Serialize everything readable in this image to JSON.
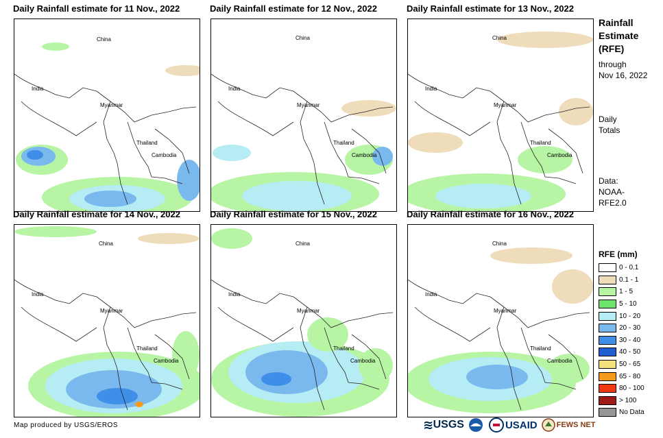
{
  "panels": [
    {
      "title": "Daily Rainfall estimate for 11 Nov., 2022"
    },
    {
      "title": "Daily Rainfall estimate for 12 Nov., 2022"
    },
    {
      "title": "Daily Rainfall estimate for 13 Nov., 2022"
    },
    {
      "title": "Daily Rainfall estimate for 14 Nov., 2022"
    },
    {
      "title": "Daily Rainfall estimate for 15 Nov., 2022"
    },
    {
      "title": "Daily Rainfall estimate for 16 Nov., 2022"
    }
  ],
  "map_labels": {
    "china": "China",
    "india": "India",
    "myanmar": "Myanmar",
    "thailand": "Thailand",
    "cambodia": "Cambodia"
  },
  "sidebar": {
    "title_line1": "Rainfall",
    "title_line2": "Estimate",
    "title_line3": "(RFE)",
    "through": "through",
    "date": "Nov 16, 2022",
    "daily": "Daily",
    "totals": "Totals",
    "data_label": "Data:",
    "data_source1": "NOAA-",
    "data_source2": "RFE2.0"
  },
  "legend": {
    "title": "RFE (mm)",
    "items": [
      {
        "label": "0 - 0.1",
        "color": "#ffffff"
      },
      {
        "label": "0.1 - 1",
        "color": "#efdcba"
      },
      {
        "label": "1 - 5",
        "color": "#b7f5a5"
      },
      {
        "label": "5 - 10",
        "color": "#6ee36b"
      },
      {
        "label": "10 - 20",
        "color": "#b6ecf4"
      },
      {
        "label": "20 - 30",
        "color": "#79b9ee"
      },
      {
        "label": "30 - 40",
        "color": "#3f8fe9"
      },
      {
        "label": "40 - 50",
        "color": "#1f5fd2"
      },
      {
        "label": "50 - 65",
        "color": "#f5e07d"
      },
      {
        "label": "65 - 80",
        "color": "#f59a1a"
      },
      {
        "label": "80 - 100",
        "color": "#ef3a12"
      },
      {
        "label": "> 100",
        "color": "#a01a16"
      },
      {
        "label": "No Data",
        "color": "#969696"
      }
    ]
  },
  "credit": "Map produced by USGS/EROS",
  "logos": {
    "usgs": "USGS",
    "usaid": "USAID",
    "fewsnet": "FEWS NET"
  }
}
